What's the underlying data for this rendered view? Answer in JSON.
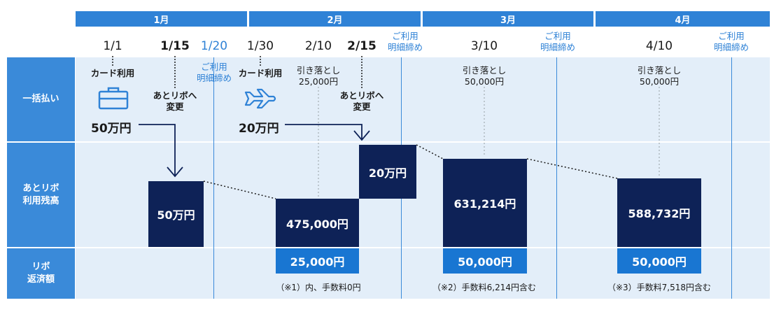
{
  "months": [
    "1月",
    "2月",
    "3月",
    "4月"
  ],
  "dates": {
    "d1": "1/1",
    "d2": "1/15",
    "d3": "1/20",
    "d4": "1/30",
    "d5": "2/10",
    "d6": "2/15",
    "d7": "3/10",
    "d8": "4/10"
  },
  "statement_close": "ご利用\n明細締め",
  "rows": {
    "lump_sum": "一括払い",
    "balance": "あとリボ\n利用残高",
    "repayment": "リボ\n返済額"
  },
  "card_use": "カード利用",
  "switch_to_atoribo": "あとリボへ\n変更",
  "amount_jan": "50万円",
  "amount_feb": "20万円",
  "withdrawal_feb": "引き落とし\n25,000円",
  "withdrawal_mar": "引き落とし\n50,000円",
  "withdrawal_apr": "引き落とし\n50,000円",
  "balances": {
    "b_jan": "50万円",
    "b_feb1": "475,000円",
    "b_feb2": "20万円",
    "b_mar": "631,214円",
    "b_apr": "588,732円"
  },
  "repayments": {
    "r_feb": "25,000円",
    "r_mar": "50,000円",
    "r_apr": "50,000円"
  },
  "fees": {
    "f_feb": "（※1）内、手数料0円",
    "f_mar": "（※2）手数料6,214円含む",
    "f_apr": "（※3）手数料7,518円含む"
  },
  "icons": [
    "briefcase-icon",
    "airplane-icon"
  ],
  "colors": {
    "header": "#2f82d6",
    "band": "#e3eef9",
    "block": "#0e2257",
    "repay": "#1976d2"
  }
}
